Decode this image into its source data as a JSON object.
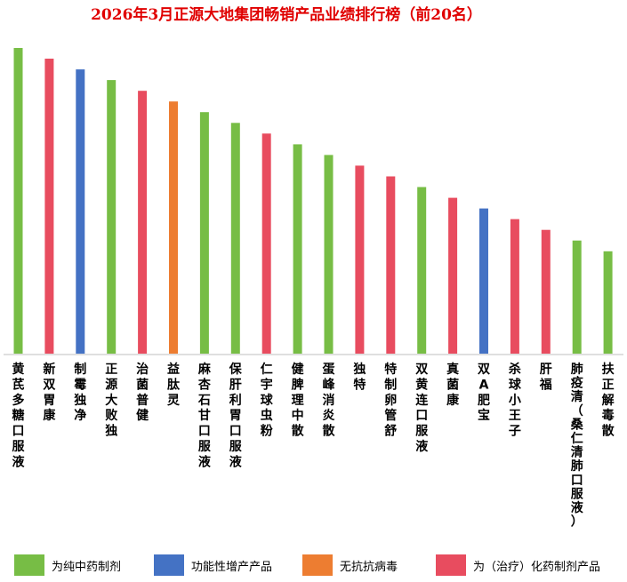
{
  "chart_data": {
    "type": "bar",
    "title": "2026年3月正源大地集团畅销产品业绩排行榜（前20名）",
    "xlabel": "",
    "ylabel": "",
    "ylim": [
      0,
      100
    ],
    "grid": false,
    "legend_position": "bottom",
    "categories": [
      "黄芪多糖口服液",
      "新双胃康",
      "制霉独净",
      "正源大败独",
      "治菌普健",
      "益肽灵",
      "麻杏石甘口服液",
      "保肝利胃口服液",
      "仁宇球虫粉",
      "健脾理中散",
      "蛋峰消炎散",
      "独特",
      "特制卵管舒",
      "双黄连口服液",
      "真菌康",
      "双A肥宝",
      "杀球小王子",
      "肝福",
      "肺疫清（桑仁清肺口服液）",
      "扶正解毒散"
    ],
    "values": [
      100,
      96.5,
      93,
      89.5,
      86,
      82.5,
      79,
      75.5,
      72,
      68.5,
      65,
      61.5,
      58,
      54.5,
      51,
      47.5,
      44,
      40.5,
      37,
      33.5
    ],
    "groups": [
      0,
      3,
      1,
      0,
      3,
      2,
      0,
      0,
      3,
      0,
      0,
      3,
      3,
      0,
      3,
      1,
      3,
      3,
      0,
      0
    ],
    "legend": [
      {
        "label": "为纯中药制剂",
        "color": "#77bd45"
      },
      {
        "label": "功能性增产产品",
        "color": "#4472c4"
      },
      {
        "label": "无抗抗病毒",
        "color": "#ed7d31"
      },
      {
        "label": "为（治疗）化药制剂产品",
        "color": "#e84c5f"
      }
    ]
  }
}
